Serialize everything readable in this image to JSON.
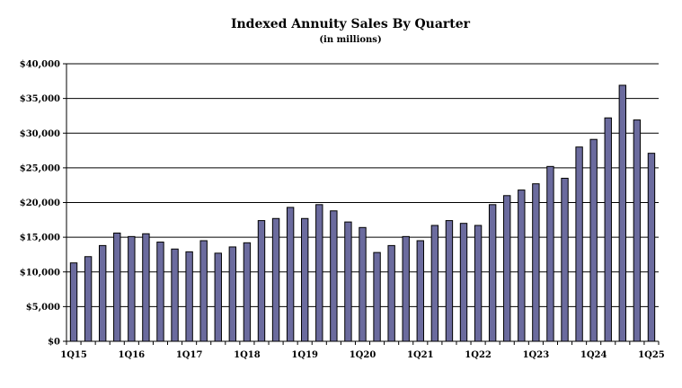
{
  "chart_data": {
    "type": "bar",
    "title": "Indexed Annuity  Sales By Quarter",
    "subtitle": "(in millions)",
    "xlabel": "",
    "ylabel": "",
    "ylim": [
      0,
      40000
    ],
    "ytick_labels": [
      "$0",
      "$5,000",
      "$10,000",
      "$15,000",
      "$20,000",
      "$25,000",
      "$30,000",
      "$35,000",
      "$40,000"
    ],
    "grid": true,
    "categories": [
      "1Q15",
      "2Q15",
      "3Q15",
      "4Q15",
      "1Q16",
      "2Q16",
      "3Q16",
      "4Q16",
      "1Q17",
      "2Q17",
      "3Q17",
      "4Q17",
      "1Q18",
      "2Q18",
      "3Q18",
      "4Q18",
      "1Q19",
      "2Q19",
      "3Q19",
      "4Q19",
      "1Q20",
      "2Q20",
      "3Q20",
      "4Q20",
      "1Q21",
      "2Q21",
      "3Q21",
      "4Q21",
      "1Q22",
      "2Q22",
      "3Q22",
      "4Q22",
      "1Q23",
      "2Q23",
      "3Q23",
      "4Q23",
      "1Q24",
      "2Q24",
      "3Q24",
      "4Q24",
      "1Q25"
    ],
    "values": [
      11300,
      12200,
      13800,
      15600,
      15100,
      15500,
      14300,
      13300,
      12900,
      14500,
      12700,
      13600,
      14200,
      17400,
      17700,
      19300,
      17700,
      19700,
      18800,
      17200,
      16400,
      12800,
      13800,
      15100,
      14500,
      16700,
      17400,
      17000,
      16700,
      19700,
      21000,
      21800,
      22700,
      25200,
      23500,
      28000,
      29100,
      32200,
      36900,
      31900,
      27100
    ],
    "visible_xtick_labels": [
      "1Q15",
      "1Q16",
      "1Q17",
      "1Q18",
      "1Q19",
      "1Q20",
      "1Q21",
      "1Q22",
      "1Q23",
      "1Q24",
      "1Q25"
    ]
  }
}
